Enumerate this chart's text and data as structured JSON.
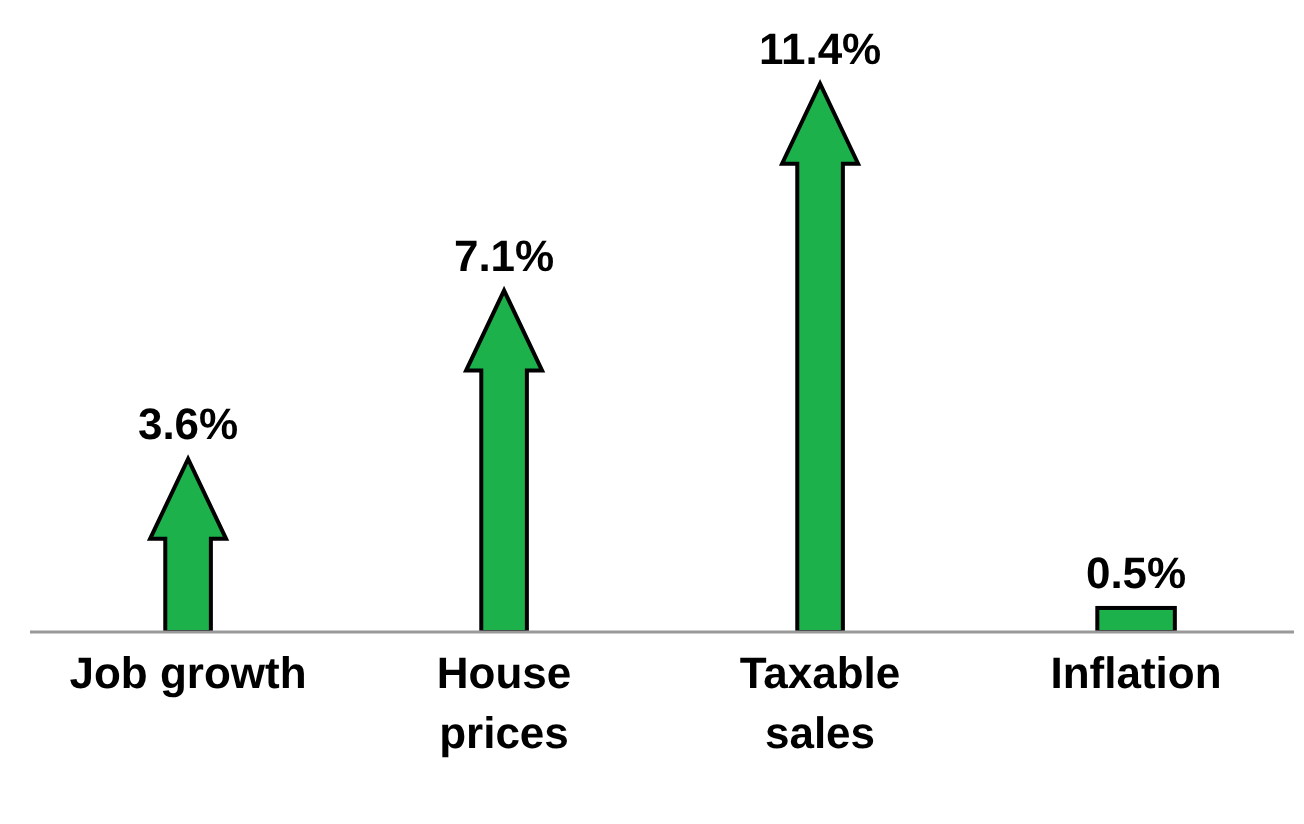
{
  "chart_data": {
    "type": "bar",
    "categories": [
      "Job growth",
      "House prices",
      "Taxable sales",
      "Inflation"
    ],
    "values": [
      3.6,
      7.1,
      11.4,
      0.5
    ],
    "value_labels": [
      "3.6%",
      "7.1%",
      "11.4%",
      "0.5%"
    ],
    "color": "#1db14b"
  }
}
